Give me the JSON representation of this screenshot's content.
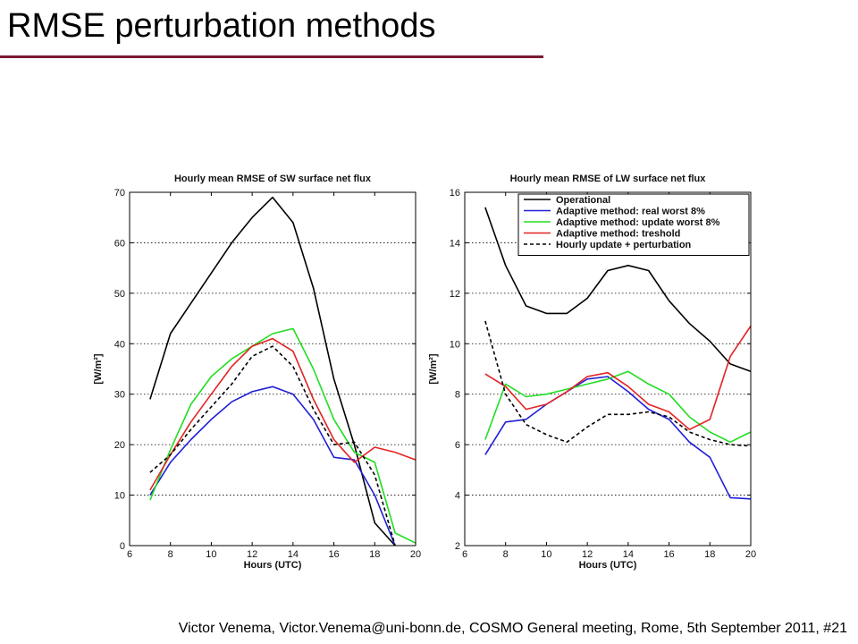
{
  "slide": {
    "title": "RMSE perturbation methods",
    "footer": "Victor Venema, Victor.Venema@uni-bonn.de, COSMO General meeting, Rome, 5th September 2011, #21",
    "accent_color": "#7a1a33"
  },
  "chart_data": [
    {
      "type": "line",
      "title": "Hourly mean RMSE of SW surface net flux",
      "xlabel": "Hours (UTC)",
      "ylabel": "[W/m²]",
      "xlim": [
        6,
        20
      ],
      "ylim": [
        0,
        70
      ],
      "xticks": [
        6,
        8,
        10,
        12,
        14,
        16,
        18,
        20
      ],
      "yticks": [
        0,
        10,
        20,
        30,
        40,
        50,
        60,
        70
      ],
      "grid": "horizontal dotted",
      "x": [
        7,
        8,
        9,
        10,
        11,
        12,
        13,
        14,
        15,
        16,
        17,
        18,
        19,
        20
      ],
      "series": [
        {
          "name": "Operational",
          "color": "#000000",
          "dash": "solid",
          "values": [
            29,
            42,
            48,
            54,
            60,
            65,
            69,
            64,
            51,
            33,
            20,
            4.5,
            0,
            null
          ]
        },
        {
          "name": "Adaptive method: real worst 8%",
          "color": "#1f1fd6",
          "dash": "solid",
          "values": [
            10,
            16.5,
            21,
            25,
            28.5,
            30.5,
            31.5,
            30,
            25,
            17.5,
            17,
            10,
            0,
            null
          ]
        },
        {
          "name": "Adaptive method: update worst 8%",
          "color": "#22dd22",
          "dash": "solid",
          "values": [
            9,
            19,
            28,
            33.5,
            37,
            39.5,
            42,
            43,
            35,
            25,
            18.5,
            16.5,
            2.5,
            0.5
          ]
        },
        {
          "name": "Adaptive method: treshold",
          "color": "#e32222",
          "dash": "solid",
          "values": [
            11,
            18,
            24.5,
            30,
            35.5,
            39.5,
            41,
            38.5,
            29,
            21,
            16.5,
            19.5,
            18.5,
            17
          ]
        },
        {
          "name": "Hourly update + perturbation",
          "color": "#000000",
          "dash": "dashed",
          "values": [
            14.5,
            18,
            23,
            27.5,
            32,
            37.5,
            39.5,
            35.5,
            27,
            20,
            20.5,
            14,
            0,
            null
          ]
        }
      ]
    },
    {
      "type": "line",
      "title": "Hourly mean RMSE of LW surface net flux",
      "xlabel": "Hours (UTC)",
      "ylabel": "[W/m²]",
      "xlim": [
        6,
        20
      ],
      "ylim": [
        2,
        16
      ],
      "xticks": [
        6,
        8,
        10,
        12,
        14,
        16,
        18,
        20
      ],
      "yticks": [
        2,
        4,
        6,
        8,
        10,
        12,
        14,
        16
      ],
      "grid": "horizontal dotted",
      "legend": "top-right",
      "x": [
        7,
        8,
        9,
        10,
        11,
        12,
        13,
        14,
        15,
        16,
        17,
        18,
        19,
        20
      ],
      "series": [
        {
          "name": "Operational",
          "color": "#000000",
          "dash": "solid",
          "values": [
            15.4,
            13.1,
            11.5,
            11.2,
            11.2,
            11.8,
            12.9,
            13.1,
            12.9,
            11.7,
            10.8,
            10.1,
            9.2,
            8.9
          ]
        },
        {
          "name": "Adaptive method: real worst 8%",
          "color": "#1f1fd6",
          "dash": "solid",
          "values": [
            5.6,
            6.9,
            7.0,
            7.6,
            8.1,
            8.6,
            8.7,
            8.1,
            7.4,
            7.0,
            6.1,
            5.5,
            3.9,
            3.85
          ]
        },
        {
          "name": "Adaptive method: update worst 8%",
          "color": "#22dd22",
          "dash": "solid",
          "values": [
            6.2,
            8.4,
            7.9,
            8.0,
            8.2,
            8.4,
            8.6,
            8.9,
            8.4,
            8.0,
            7.1,
            6.5,
            6.1,
            6.5
          ]
        },
        {
          "name": "Adaptive method: treshold",
          "color": "#e32222",
          "dash": "solid",
          "values": [
            8.8,
            8.3,
            7.4,
            7.6,
            8.1,
            8.7,
            8.85,
            8.3,
            7.6,
            7.3,
            6.6,
            7.0,
            9.5,
            10.7
          ]
        },
        {
          "name": "Hourly update + perturbation",
          "color": "#000000",
          "dash": "dashed",
          "values": [
            10.9,
            8.0,
            6.8,
            6.4,
            6.1,
            6.7,
            7.2,
            7.2,
            7.3,
            7.1,
            6.5,
            6.2,
            6.0,
            5.95
          ]
        }
      ]
    }
  ]
}
